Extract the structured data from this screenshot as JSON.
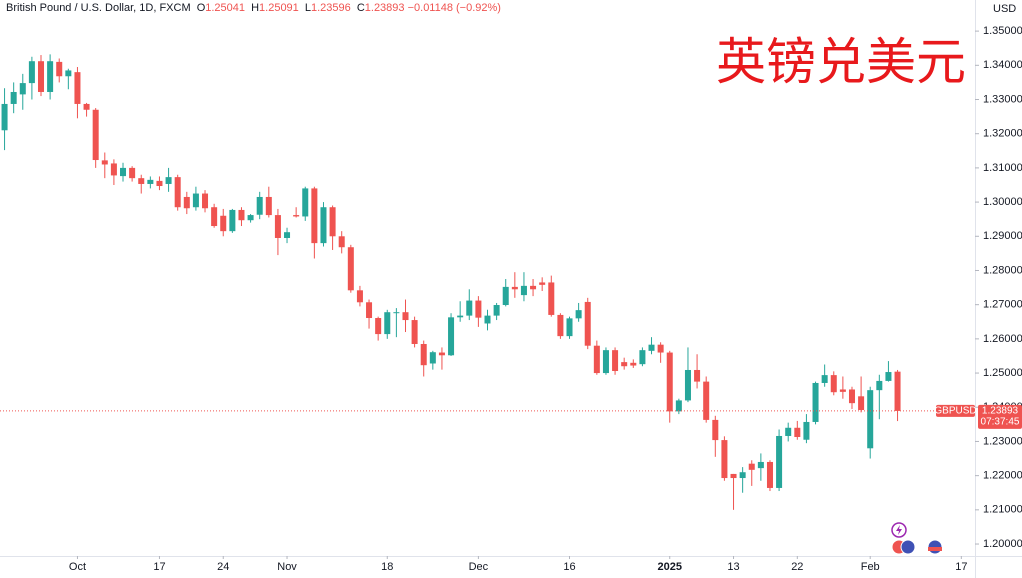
{
  "chart_data": {
    "type": "candlestick",
    "title": "英镑兑美元",
    "symbol_title": "British Pound / U.S. Dollar, 1D, FXCM",
    "ohlc_labels": [
      "O",
      "H",
      "L",
      "C"
    ],
    "change": "−0.01148 (−0.92%)",
    "currency": "USD",
    "symbol": "GBPUSD",
    "countdown": "07:37:45",
    "up_color": "#26a69a",
    "down_color": "#ef5350",
    "open": [
      1.321,
      1.3287,
      1.3315,
      1.3348,
      1.3412,
      1.3322,
      1.341,
      1.3368,
      1.338,
      1.3287,
      1.327,
      1.3122,
      1.3113,
      1.3076,
      1.31,
      1.307,
      1.3053,
      1.3062,
      1.3053,
      1.3073,
      1.3015,
      1.2985,
      1.3025,
      1.2985,
      1.296,
      1.2915,
      1.2977,
      1.2947,
      1.2963,
      1.3015,
      1.2962,
      1.2895,
      1.2962,
      1.2958,
      1.304,
      1.288,
      1.2985,
      1.29,
      1.2868,
      1.2742,
      1.2707,
      1.2661,
      1.2614,
      1.2676,
      1.2678,
      1.2655,
      1.2585,
      1.2528,
      1.256,
      1.2552,
      1.2663,
      1.2668,
      1.2712,
      1.2645,
      1.2668,
      1.2699,
      1.2752,
      1.2728,
      1.2755,
      1.2765,
      1.2765,
      1.267,
      1.2608,
      1.266,
      1.2708,
      1.258,
      1.25,
      1.2567,
      1.2532,
      1.253,
      1.2526,
      1.2565,
      1.2583,
      1.256,
      1.2388,
      1.242,
      1.2509,
      1.2475,
      1.2363,
      1.2304,
      1.2205,
      1.2193,
      1.2235,
      1.2222,
      1.224,
      1.2164,
      1.2316,
      1.234,
      1.2305,
      1.2357,
      1.2471,
      1.2494,
      1.2452,
      1.2452,
      1.2432,
      1.228,
      1.245,
      1.2477,
      1.25041
    ],
    "high": [
      1.3333,
      1.335,
      1.3375,
      1.3425,
      1.343,
      1.3432,
      1.342,
      1.339,
      1.3395,
      1.329,
      1.3275,
      1.3145,
      1.3125,
      1.3115,
      1.3105,
      1.308,
      1.3075,
      1.3075,
      1.31,
      1.308,
      1.303,
      1.3045,
      1.3035,
      1.2995,
      1.298,
      1.298,
      1.2985,
      1.2965,
      1.303,
      1.3045,
      1.298,
      1.2925,
      1.2985,
      1.3045,
      1.3045,
      1.3,
      1.299,
      1.2915,
      1.2875,
      1.2755,
      1.2715,
      1.2665,
      1.2685,
      1.269,
      1.2715,
      1.2665,
      1.2595,
      1.2565,
      1.2575,
      1.2675,
      1.271,
      1.2745,
      1.2725,
      1.2685,
      1.2705,
      1.2775,
      1.2795,
      1.2795,
      1.2775,
      1.278,
      1.2785,
      1.2675,
      1.2665,
      1.2705,
      1.272,
      1.2595,
      1.2575,
      1.2575,
      1.2545,
      1.254,
      1.2575,
      1.2605,
      1.259,
      1.2565,
      1.2425,
      1.2575,
      1.2555,
      1.249,
      1.2375,
      1.2315,
      1.2205,
      1.2225,
      1.2245,
      1.2265,
      1.2245,
      1.2335,
      1.2355,
      1.236,
      1.238,
      1.2475,
      1.2525,
      1.2505,
      1.249,
      1.246,
      1.249,
      1.246,
      1.2495,
      1.2535,
      1.25091
    ],
    "low": [
      1.3152,
      1.326,
      1.327,
      1.33,
      1.331,
      1.33,
      1.335,
      1.333,
      1.3245,
      1.325,
      1.31,
      1.307,
      1.305,
      1.306,
      1.306,
      1.3025,
      1.304,
      1.3035,
      1.303,
      1.2975,
      1.2965,
      1.2975,
      1.297,
      1.2925,
      1.29,
      1.291,
      1.293,
      1.294,
      1.295,
      1.2955,
      1.2845,
      1.288,
      1.2955,
      1.2945,
      1.2835,
      1.287,
      1.286,
      1.285,
      1.2735,
      1.2695,
      1.263,
      1.2595,
      1.26,
      1.2605,
      1.262,
      1.2575,
      1.249,
      1.251,
      1.251,
      1.255,
      1.265,
      1.2655,
      1.2635,
      1.2625,
      1.2655,
      1.2695,
      1.272,
      1.271,
      1.2725,
      1.274,
      1.2665,
      1.26,
      1.26,
      1.265,
      1.257,
      1.2495,
      1.2495,
      1.2495,
      1.251,
      1.2515,
      1.252,
      1.2555,
      1.253,
      1.2355,
      1.238,
      1.2415,
      1.2455,
      1.2355,
      1.2255,
      1.2185,
      1.21,
      1.215,
      1.217,
      1.2185,
      1.2155,
      1.2155,
      1.23,
      1.2305,
      1.2295,
      1.235,
      1.246,
      1.2435,
      1.2425,
      1.2395,
      1.2385,
      1.225,
      1.2365,
      1.2475,
      1.23596
    ],
    "close": [
      1.3287,
      1.3322,
      1.3348,
      1.3412,
      1.3322,
      1.3412,
      1.3368,
      1.3385,
      1.3287,
      1.327,
      1.3123,
      1.311,
      1.3078,
      1.31,
      1.307,
      1.3053,
      1.3065,
      1.3047,
      1.3073,
      1.2985,
      1.2982,
      1.3025,
      1.2982,
      1.293,
      1.2915,
      1.2977,
      1.2947,
      1.2962,
      1.3015,
      1.2962,
      1.2895,
      1.2912,
      1.2958,
      1.304,
      1.288,
      1.2985,
      1.29,
      1.2868,
      1.2742,
      1.2707,
      1.2661,
      1.2614,
      1.2678,
      1.2678,
      1.2655,
      1.2585,
      1.2523,
      1.2561,
      1.2552,
      1.2663,
      1.2668,
      1.2712,
      1.2662,
      1.2668,
      1.2699,
      1.2752,
      1.2745,
      1.2755,
      1.2745,
      1.2758,
      1.267,
      1.2608,
      1.266,
      1.2684,
      1.258,
      1.25,
      1.2567,
      1.2506,
      1.252,
      1.2522,
      1.2567,
      1.2583,
      1.256,
      1.2388,
      1.242,
      1.2509,
      1.2475,
      1.2363,
      1.2304,
      1.2193,
      1.2193,
      1.221,
      1.2217,
      1.224,
      1.2164,
      1.2316,
      1.234,
      1.2313,
      1.2357,
      1.2471,
      1.2494,
      1.2444,
      1.2445,
      1.2412,
      1.2392,
      1.245,
      1.2477,
      1.2503,
      1.23893
    ],
    "xlim": [
      -0.5,
      106.5
    ],
    "xticks": [
      {
        "value": 8,
        "label": "Oct"
      },
      17,
      24,
      {
        "value": 31,
        "label": "Nov"
      },
      {
        "value": 42,
        "label": "18"
      },
      {
        "value": 52,
        "label": "Dec"
      },
      {
        "value": 62,
        "label": "16"
      },
      {
        "value": 73,
        "label": "2025"
      },
      {
        "value": 80,
        "label": "13"
      },
      {
        "value": 87,
        "label": "22"
      },
      {
        "value": 95,
        "label": "Feb"
      },
      {
        "value": 105,
        "label": "17"
      }
    ],
    "ylim": [
      1.1965,
      1.3591
    ],
    "yticks": [
      {
        "value": 1.2,
        "label": "1.20000"
      },
      {
        "value": 1.21,
        "label": "1.21000"
      },
      {
        "value": 1.22,
        "label": "1.22000"
      },
      {
        "value": 1.23,
        "label": "1.23000"
      },
      {
        "value": 1.24,
        "label": "1.24000"
      },
      {
        "value": 1.25,
        "label": "1.25000"
      },
      {
        "value": 1.26,
        "label": "1.26000"
      },
      {
        "value": 1.27,
        "label": "1.27000"
      },
      {
        "value": 1.28,
        "label": "1.28000"
      },
      {
        "value": 1.29,
        "label": "1.29000"
      },
      {
        "value": 1.3,
        "label": "1.30000"
      },
      {
        "value": 1.31,
        "label": "1.31000"
      },
      {
        "value": 1.32,
        "label": "1.32000"
      },
      {
        "value": 1.33,
        "label": "1.33000"
      },
      {
        "value": 1.34,
        "label": "1.34000"
      },
      {
        "value": 1.35,
        "label": "1.35000"
      }
    ]
  }
}
